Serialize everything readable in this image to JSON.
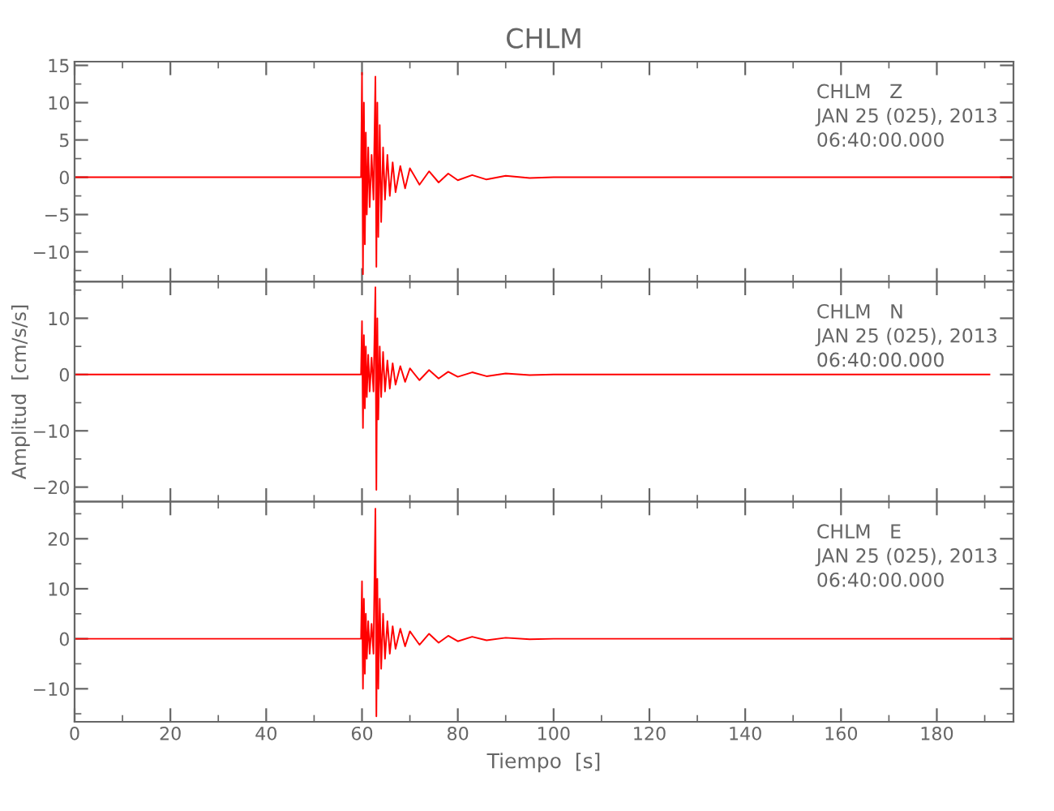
{
  "chart_data": [
    {
      "type": "line",
      "title": "CHLM",
      "annotations": [
        "CHLM   Z",
        "JAN 25 (025), 2013",
        "06:40:00.000"
      ],
      "series": [
        {
          "color": "#ff0000",
          "x": [
            0,
            59.8,
            60,
            60.2,
            60.4,
            60.6,
            60.8,
            61,
            61.3,
            61.6,
            62,
            62.4,
            62.8,
            63,
            63.2,
            63.4,
            63.7,
            64,
            64.4,
            64.8,
            65.3,
            65.8,
            66.4,
            67,
            68,
            69,
            70,
            72,
            74,
            76,
            78,
            80,
            83,
            86,
            90,
            95,
            100,
            195.5
          ],
          "values": [
            0,
            0,
            14,
            -13,
            10,
            -9,
            6,
            -5,
            4,
            -4,
            3,
            -3,
            13.5,
            -12,
            10,
            -8,
            7,
            -6,
            4,
            -3,
            3,
            -2.5,
            2,
            -2,
            1.5,
            -1.5,
            1.2,
            -1,
            0.8,
            -0.7,
            0.5,
            -0.4,
            0.3,
            -0.3,
            0.2,
            -0.1,
            0,
            0
          ]
        }
      ],
      "xlim": [
        0,
        196
      ],
      "xticks": [
        0,
        20,
        40,
        60,
        80,
        100,
        120,
        140,
        160,
        180
      ],
      "ylim": [
        -14,
        15.5
      ],
      "yticks": [
        -10,
        -5,
        0,
        5,
        10,
        15
      ],
      "tick_labels": "y"
    },
    {
      "type": "line",
      "ylabel": "Amplitud  [cm/s/s]",
      "annotations": [
        "CHLM   N",
        "JAN 25 (025), 2013",
        "06:40:00.000"
      ],
      "series": [
        {
          "color": "#ff0000",
          "x": [
            0,
            59.8,
            60,
            60.2,
            60.4,
            60.6,
            60.8,
            61,
            61.3,
            61.6,
            62,
            62.4,
            62.8,
            63,
            63.2,
            63.4,
            63.7,
            64,
            64.4,
            64.8,
            65.3,
            65.8,
            66.4,
            67,
            68,
            69,
            70,
            72,
            74,
            76,
            78,
            80,
            83,
            86,
            90,
            95,
            100,
            191
          ],
          "values": [
            0,
            0,
            9.5,
            -9.5,
            7,
            -6,
            5,
            -4,
            3.5,
            -3,
            3,
            -3,
            15.5,
            -20.5,
            10,
            -8,
            5,
            -4,
            4,
            -3,
            2.5,
            -2.5,
            2,
            -1.8,
            1.5,
            -1.3,
            1.1,
            -1,
            0.8,
            -0.7,
            0.5,
            -0.4,
            0.4,
            -0.3,
            0.2,
            -0.1,
            0,
            0
          ]
        }
      ],
      "xlim": [
        0,
        196
      ],
      "xticks": [
        0,
        20,
        40,
        60,
        80,
        100,
        120,
        140,
        160,
        180
      ],
      "ylim": [
        -22.6,
        16.5
      ],
      "yticks": [
        -20,
        -10,
        0,
        10
      ],
      "tick_labels": "y"
    },
    {
      "type": "line",
      "xlabel": "Tiempo  [s]",
      "annotations": [
        "CHLM   E",
        "JAN 25 (025), 2013",
        "06:40:00.000"
      ],
      "series": [
        {
          "color": "#ff0000",
          "x": [
            0,
            59.8,
            60,
            60.2,
            60.4,
            60.6,
            60.8,
            61,
            61.3,
            61.6,
            62,
            62.4,
            62.8,
            63,
            63.2,
            63.4,
            63.7,
            64,
            64.4,
            64.8,
            65.3,
            65.8,
            66.4,
            67,
            68,
            69,
            70,
            72,
            74,
            76,
            78,
            80,
            83,
            86,
            90,
            95,
            100,
            195.5
          ],
          "values": [
            0,
            0,
            11.5,
            -10,
            8,
            -7,
            5,
            -4,
            3.5,
            -3,
            3,
            -3,
            26,
            -15.5,
            12,
            -10,
            8,
            -6,
            5,
            -4,
            3.5,
            -3,
            2.5,
            -2,
            2,
            -1.5,
            1.5,
            -1.2,
            1,
            -0.8,
            0.6,
            -0.5,
            0.4,
            -0.3,
            0.2,
            -0.1,
            0,
            0
          ]
        }
      ],
      "xlim": [
        0,
        196
      ],
      "xticks": [
        0,
        20,
        40,
        60,
        80,
        100,
        120,
        140,
        160,
        180
      ],
      "ylim": [
        -16.6,
        27.4
      ],
      "yticks": [
        -10,
        0,
        10,
        20
      ]
    }
  ]
}
